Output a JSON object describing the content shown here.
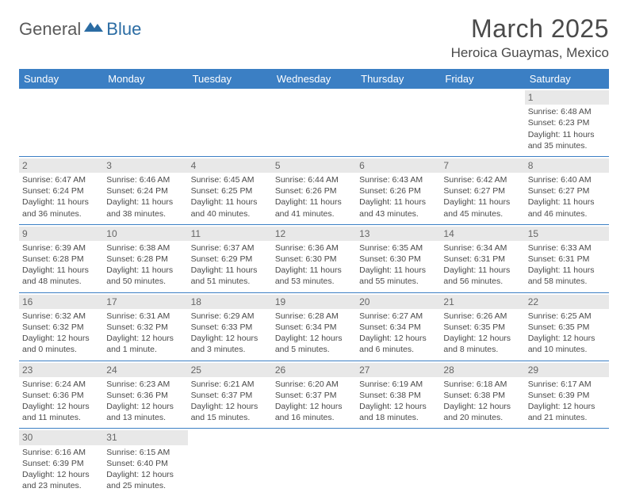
{
  "logo": {
    "general": "General",
    "blue": "Blue"
  },
  "title": "March 2025",
  "location": "Heroica Guaymas, Mexico",
  "colors": {
    "header_bg": "#3b7fc4",
    "header_text": "#ffffff",
    "border": "#3b7fc4",
    "daynum_bg": "#e8e8e8",
    "text": "#4a4a4a",
    "logo_blue": "#2b6ca3"
  },
  "day_headers": [
    "Sunday",
    "Monday",
    "Tuesday",
    "Wednesday",
    "Thursday",
    "Friday",
    "Saturday"
  ],
  "weeks": [
    [
      null,
      null,
      null,
      null,
      null,
      null,
      {
        "n": "1",
        "sr": "Sunrise: 6:48 AM",
        "ss": "Sunset: 6:23 PM",
        "dl": "Daylight: 11 hours and 35 minutes."
      }
    ],
    [
      {
        "n": "2",
        "sr": "Sunrise: 6:47 AM",
        "ss": "Sunset: 6:24 PM",
        "dl": "Daylight: 11 hours and 36 minutes."
      },
      {
        "n": "3",
        "sr": "Sunrise: 6:46 AM",
        "ss": "Sunset: 6:24 PM",
        "dl": "Daylight: 11 hours and 38 minutes."
      },
      {
        "n": "4",
        "sr": "Sunrise: 6:45 AM",
        "ss": "Sunset: 6:25 PM",
        "dl": "Daylight: 11 hours and 40 minutes."
      },
      {
        "n": "5",
        "sr": "Sunrise: 6:44 AM",
        "ss": "Sunset: 6:26 PM",
        "dl": "Daylight: 11 hours and 41 minutes."
      },
      {
        "n": "6",
        "sr": "Sunrise: 6:43 AM",
        "ss": "Sunset: 6:26 PM",
        "dl": "Daylight: 11 hours and 43 minutes."
      },
      {
        "n": "7",
        "sr": "Sunrise: 6:42 AM",
        "ss": "Sunset: 6:27 PM",
        "dl": "Daylight: 11 hours and 45 minutes."
      },
      {
        "n": "8",
        "sr": "Sunrise: 6:40 AM",
        "ss": "Sunset: 6:27 PM",
        "dl": "Daylight: 11 hours and 46 minutes."
      }
    ],
    [
      {
        "n": "9",
        "sr": "Sunrise: 6:39 AM",
        "ss": "Sunset: 6:28 PM",
        "dl": "Daylight: 11 hours and 48 minutes."
      },
      {
        "n": "10",
        "sr": "Sunrise: 6:38 AM",
        "ss": "Sunset: 6:28 PM",
        "dl": "Daylight: 11 hours and 50 minutes."
      },
      {
        "n": "11",
        "sr": "Sunrise: 6:37 AM",
        "ss": "Sunset: 6:29 PM",
        "dl": "Daylight: 11 hours and 51 minutes."
      },
      {
        "n": "12",
        "sr": "Sunrise: 6:36 AM",
        "ss": "Sunset: 6:30 PM",
        "dl": "Daylight: 11 hours and 53 minutes."
      },
      {
        "n": "13",
        "sr": "Sunrise: 6:35 AM",
        "ss": "Sunset: 6:30 PM",
        "dl": "Daylight: 11 hours and 55 minutes."
      },
      {
        "n": "14",
        "sr": "Sunrise: 6:34 AM",
        "ss": "Sunset: 6:31 PM",
        "dl": "Daylight: 11 hours and 56 minutes."
      },
      {
        "n": "15",
        "sr": "Sunrise: 6:33 AM",
        "ss": "Sunset: 6:31 PM",
        "dl": "Daylight: 11 hours and 58 minutes."
      }
    ],
    [
      {
        "n": "16",
        "sr": "Sunrise: 6:32 AM",
        "ss": "Sunset: 6:32 PM",
        "dl": "Daylight: 12 hours and 0 minutes."
      },
      {
        "n": "17",
        "sr": "Sunrise: 6:31 AM",
        "ss": "Sunset: 6:32 PM",
        "dl": "Daylight: 12 hours and 1 minute."
      },
      {
        "n": "18",
        "sr": "Sunrise: 6:29 AM",
        "ss": "Sunset: 6:33 PM",
        "dl": "Daylight: 12 hours and 3 minutes."
      },
      {
        "n": "19",
        "sr": "Sunrise: 6:28 AM",
        "ss": "Sunset: 6:34 PM",
        "dl": "Daylight: 12 hours and 5 minutes."
      },
      {
        "n": "20",
        "sr": "Sunrise: 6:27 AM",
        "ss": "Sunset: 6:34 PM",
        "dl": "Daylight: 12 hours and 6 minutes."
      },
      {
        "n": "21",
        "sr": "Sunrise: 6:26 AM",
        "ss": "Sunset: 6:35 PM",
        "dl": "Daylight: 12 hours and 8 minutes."
      },
      {
        "n": "22",
        "sr": "Sunrise: 6:25 AM",
        "ss": "Sunset: 6:35 PM",
        "dl": "Daylight: 12 hours and 10 minutes."
      }
    ],
    [
      {
        "n": "23",
        "sr": "Sunrise: 6:24 AM",
        "ss": "Sunset: 6:36 PM",
        "dl": "Daylight: 12 hours and 11 minutes."
      },
      {
        "n": "24",
        "sr": "Sunrise: 6:23 AM",
        "ss": "Sunset: 6:36 PM",
        "dl": "Daylight: 12 hours and 13 minutes."
      },
      {
        "n": "25",
        "sr": "Sunrise: 6:21 AM",
        "ss": "Sunset: 6:37 PM",
        "dl": "Daylight: 12 hours and 15 minutes."
      },
      {
        "n": "26",
        "sr": "Sunrise: 6:20 AM",
        "ss": "Sunset: 6:37 PM",
        "dl": "Daylight: 12 hours and 16 minutes."
      },
      {
        "n": "27",
        "sr": "Sunrise: 6:19 AM",
        "ss": "Sunset: 6:38 PM",
        "dl": "Daylight: 12 hours and 18 minutes."
      },
      {
        "n": "28",
        "sr": "Sunrise: 6:18 AM",
        "ss": "Sunset: 6:38 PM",
        "dl": "Daylight: 12 hours and 20 minutes."
      },
      {
        "n": "29",
        "sr": "Sunrise: 6:17 AM",
        "ss": "Sunset: 6:39 PM",
        "dl": "Daylight: 12 hours and 21 minutes."
      }
    ],
    [
      {
        "n": "30",
        "sr": "Sunrise: 6:16 AM",
        "ss": "Sunset: 6:39 PM",
        "dl": "Daylight: 12 hours and 23 minutes."
      },
      {
        "n": "31",
        "sr": "Sunrise: 6:15 AM",
        "ss": "Sunset: 6:40 PM",
        "dl": "Daylight: 12 hours and 25 minutes."
      },
      null,
      null,
      null,
      null,
      null
    ]
  ]
}
